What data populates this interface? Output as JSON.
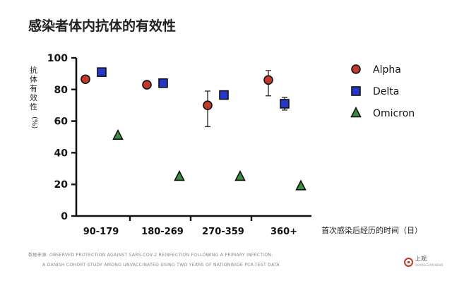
{
  "title": "感染者体内抗体的有效性",
  "chart_data": {
    "type": "scatter",
    "title": "感染者体内抗体的有效性",
    "ylabel": "抗体有效性",
    "yunit": "(%)",
    "xlabel": "首次感染后经历的时间（日）",
    "ylim": [
      0,
      100
    ],
    "yticks": [
      0,
      20,
      40,
      60,
      80,
      100
    ],
    "categories": [
      "90-179",
      "180-269",
      "270-359",
      "360+"
    ],
    "legend_position": "right",
    "series": [
      {
        "name": "Alpha",
        "marker": "circle",
        "color": "#c0392b",
        "values": [
          86.5,
          83,
          70,
          86
        ],
        "error_low": [
          null,
          null,
          56.5,
          76
        ],
        "error_high": [
          null,
          null,
          79,
          92
        ]
      },
      {
        "name": "Delta",
        "marker": "square",
        "color": "#2638c9",
        "values": [
          91,
          84,
          76.5,
          71
        ],
        "error_low": [
          null,
          null,
          null,
          67
        ],
        "error_high": [
          null,
          null,
          null,
          75
        ]
      },
      {
        "name": "Omicron",
        "marker": "triangle",
        "color": "#3a8c3f",
        "values": [
          51,
          25,
          25,
          19
        ],
        "error_low": [
          null,
          null,
          null,
          null
        ],
        "error_high": [
          null,
          null,
          null,
          null
        ]
      }
    ]
  },
  "source": {
    "label": "数据来源:",
    "line1": "OBSERVED PROTECTION AGAINST SARS-COV-2 REINFECTION FOLLOWING A PRIMARY INFECTION:",
    "line2": "A DANISH COHORT STUDY AMONG UNVACCINATED USING TWO YEARS OF NATIONWIDE PCR-TEST DATA"
  },
  "logo": {
    "name": "上观",
    "sub": "SHANGGUAN NEWS"
  }
}
